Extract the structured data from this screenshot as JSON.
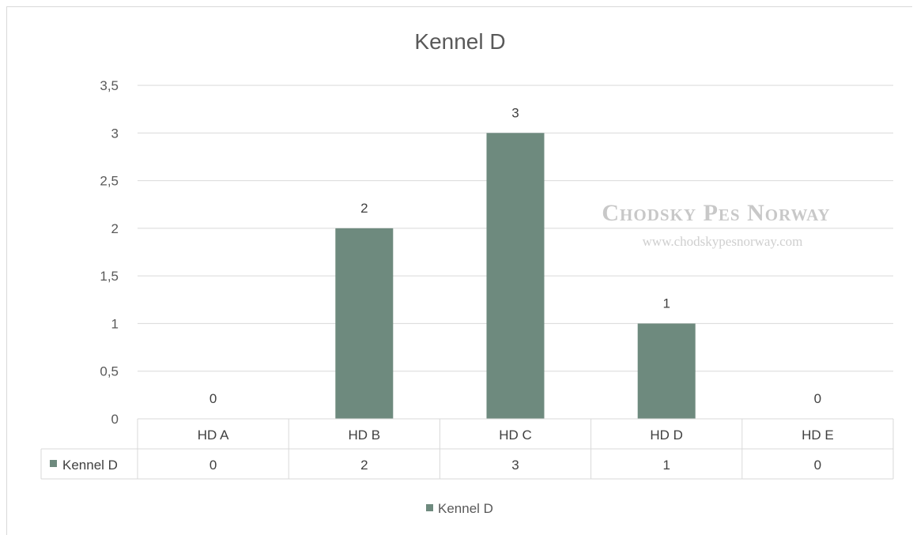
{
  "chart_data": {
    "type": "bar",
    "title": "Kennel D",
    "categories": [
      "HD A",
      "HD B",
      "HD C",
      "HD D",
      "HD E"
    ],
    "series": [
      {
        "name": "Kennel D",
        "values": [
          0,
          2,
          3,
          1,
          0
        ],
        "color": "#6e8a7e"
      }
    ],
    "ylim": [
      0,
      3.5
    ],
    "yticks": [
      "0",
      "0,5",
      "1",
      "1,5",
      "2",
      "2,5",
      "3",
      "3,5"
    ],
    "grid": true,
    "data_table": true,
    "legend": "bottom"
  },
  "watermark": {
    "title": "Chodsky Pes Norway",
    "url": "www.chodskypesnorway.com"
  }
}
